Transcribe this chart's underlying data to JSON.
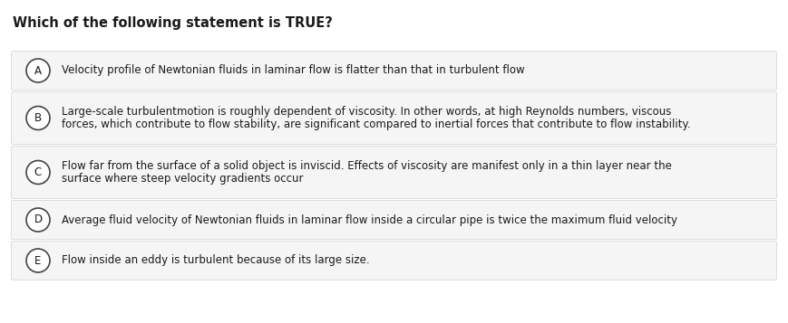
{
  "title": "Which of the following statement is TRUE?",
  "title_fontsize": 10.5,
  "title_fontweight": "bold",
  "bg_color": "#ffffff",
  "option_bg_color": "#f5f5f5",
  "option_border_color": "#dddddd",
  "text_color": "#1a1a1a",
  "circle_edge_color": "#444444",
  "circle_face_color": "#ffffff",
  "font_size": 8.5,
  "options": [
    {
      "label": "A",
      "lines": [
        "Velocity profile of Newtonian fluids in laminar flow is flatter than that in turbulent flow"
      ]
    },
    {
      "label": "B",
      "lines": [
        "Large-scale turbulentmotion is roughly dependent of viscosity. In other words, at high Reynolds numbers, viscous",
        "forces, which contribute to flow stability, are significant compared to inertial forces that contribute to flow instability."
      ]
    },
    {
      "label": "C",
      "lines": [
        "Flow far from the surface of a solid object is inviscid. Effects of viscosity are manifest only in a thin layer near the",
        "surface where steep velocity gradients occur"
      ]
    },
    {
      "label": "D",
      "lines": [
        "Average fluid velocity of Newtonian fluids in laminar flow inside a circular pipe is twice the maximum fluid velocity"
      ]
    },
    {
      "label": "E",
      "lines": [
        "Flow inside an eddy is turbulent because of its large size."
      ]
    }
  ]
}
